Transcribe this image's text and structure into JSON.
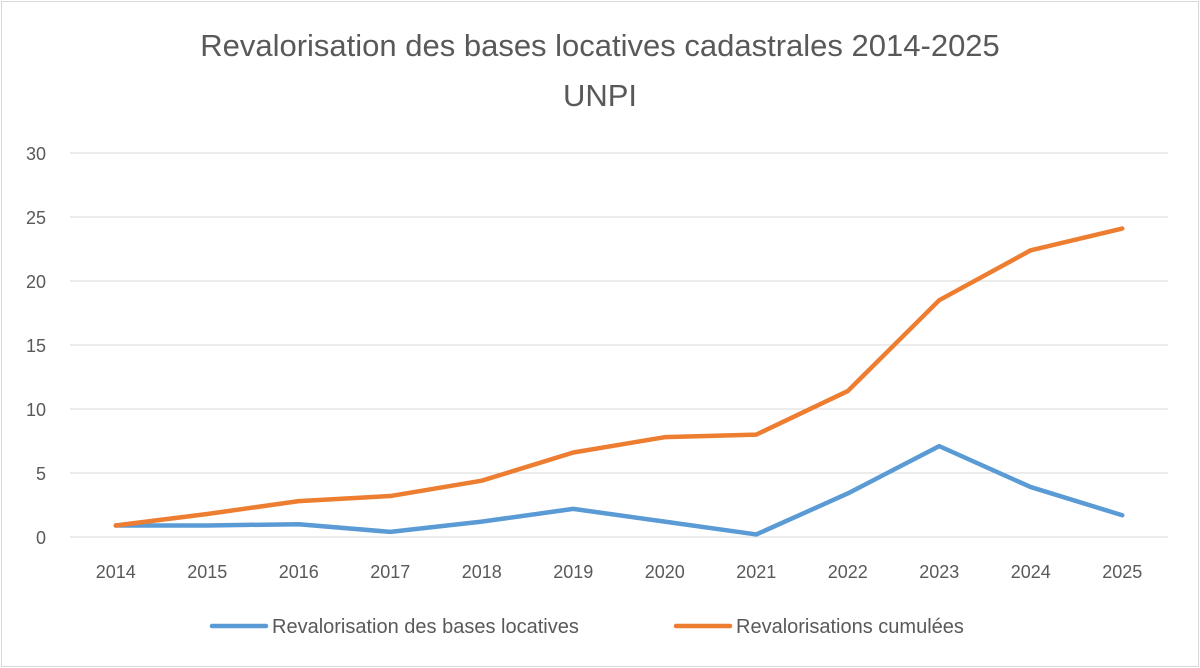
{
  "chart_data": {
    "type": "line",
    "title": "Revalorisation des bases locatives cadastrales 2014-2025",
    "subtitle": "UNPI",
    "xlabel": "",
    "ylabel": "",
    "categories": [
      "2014",
      "2015",
      "2016",
      "2017",
      "2018",
      "2019",
      "2020",
      "2021",
      "2022",
      "2023",
      "2024",
      "2025"
    ],
    "ylim": [
      0,
      30
    ],
    "yticks": [
      0,
      5,
      10,
      15,
      20,
      25,
      30
    ],
    "grid": true,
    "legend": "bottom",
    "series": [
      {
        "name": "Revalorisation des bases locatives",
        "color": "#5b9bd5",
        "values": [
          0.9,
          0.9,
          1.0,
          0.4,
          1.2,
          2.2,
          1.2,
          0.2,
          3.4,
          7.1,
          3.9,
          1.7
        ]
      },
      {
        "name": "Revalorisations cumulées",
        "color": "#ed7d31",
        "values": [
          0.9,
          1.8,
          2.8,
          3.2,
          4.4,
          6.6,
          7.8,
          8.0,
          11.4,
          18.5,
          22.4,
          24.1
        ]
      }
    ]
  }
}
